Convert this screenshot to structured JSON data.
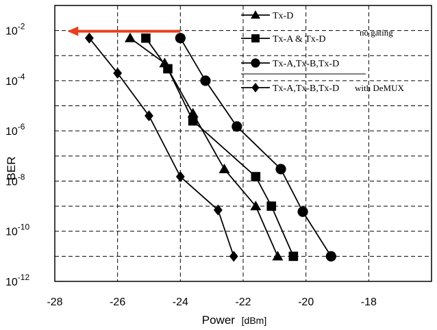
{
  "chart_data": {
    "type": "line",
    "xlabel": "Power",
    "xlabel_unit": "[dBm]",
    "ylabel": "BER",
    "xlim": [
      -28,
      -16
    ],
    "ylim_exponent": [
      -12,
      -1
    ],
    "y_scale": "log",
    "x_ticks": [
      "-28",
      "-26",
      "-24",
      "-22",
      "-20",
      "-18"
    ],
    "y_ticks": [
      {
        "base": "10",
        "exp": "-2",
        "e": -2
      },
      {
        "base": "10",
        "exp": "-4",
        "e": -4
      },
      {
        "base": "10",
        "exp": "-6",
        "e": -6
      },
      {
        "base": "10",
        "exp": "-8",
        "e": -8
      },
      {
        "base": "10",
        "exp": "-10",
        "e": -10
      },
      {
        "base": "10",
        "exp": "-12",
        "e": -12
      }
    ],
    "grid": true,
    "legend_position": "top-right",
    "series": [
      {
        "name": "Tx-D",
        "marker": "triangle",
        "x": [
          -25.6,
          -24.5,
          -23.6,
          -22.6,
          -21.6,
          -20.9
        ],
        "y": [
          0.005,
          0.0005,
          5e-06,
          3e-08,
          1e-09,
          1e-11
        ]
      },
      {
        "name": "Tx-A & Tx-D",
        "marker": "square",
        "x": [
          -25.1,
          -24.4,
          -23.6,
          -21.6,
          -21.1,
          -20.4
        ],
        "y": [
          0.005,
          0.0003,
          2.5e-06,
          1.5e-08,
          1e-09,
          1e-11
        ]
      },
      {
        "name": "Tx-A,Tx-B,Tx-D",
        "marker": "circle",
        "x": [
          -24.0,
          -23.2,
          -22.2,
          -20.8,
          -20.1,
          -19.2
        ],
        "y": [
          0.005,
          0.0001,
          1.5e-06,
          3e-08,
          6e-10,
          1e-11
        ]
      },
      {
        "name": "Tx-A,Tx-B,Tx-D",
        "marker": "diamond",
        "x": [
          -26.9,
          -26.0,
          -25.0,
          -24.0,
          -22.8,
          -22.3
        ],
        "y": [
          0.005,
          0.0002,
          4e-06,
          1.5e-08,
          7e-10,
          1e-11
        ]
      }
    ],
    "annotations": {
      "no_gating": "no gating",
      "with_demux": "with DeMUX"
    },
    "arrow": {
      "x_from": -24.0,
      "x_to": -27.6,
      "y": 0.01,
      "color": "#e8401f"
    }
  }
}
